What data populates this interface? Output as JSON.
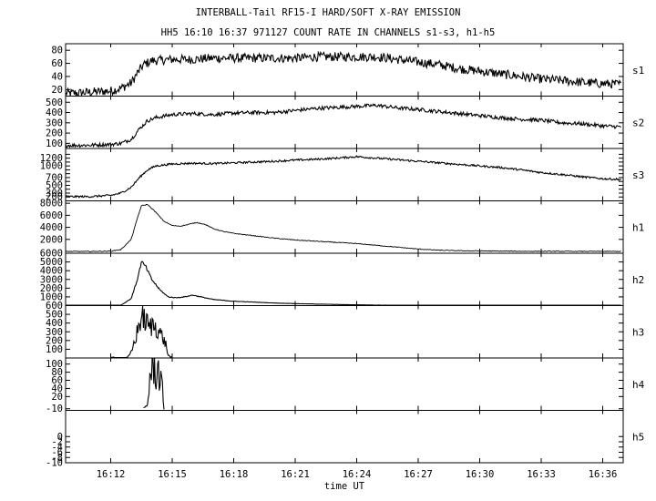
{
  "title_line1": "INTERBALL-Tail RF15-I HARD/SOFT X-RAY EMISSION",
  "title_line2": "HH5 16:10 16:37 971127  COUNT RATE IN CHANNELS s1-s3, h1-h5",
  "chart_data": {
    "type": "line",
    "xlabel": "time UT",
    "x_ticks": [
      "16:12",
      "16:15",
      "16:18",
      "16:21",
      "16:24",
      "16:27",
      "16:30",
      "16:33",
      "16:36"
    ],
    "x_tick_minutes": [
      12,
      15,
      18,
      21,
      24,
      27,
      30,
      33,
      36
    ],
    "xlim_minutes": [
      9.8,
      37.0
    ],
    "panels": [
      {
        "name": "s1",
        "ylim": [
          10,
          90
        ],
        "y_ticks": [
          20,
          40,
          60,
          80
        ],
        "series_points": [
          [
            9.8,
            14
          ],
          [
            10.5,
            15
          ],
          [
            11.0,
            16
          ],
          [
            11.5,
            17
          ],
          [
            12.0,
            18
          ],
          [
            12.5,
            22
          ],
          [
            13.0,
            30
          ],
          [
            13.3,
            45
          ],
          [
            13.6,
            58
          ],
          [
            14.0,
            64
          ],
          [
            15.0,
            66
          ],
          [
            16.0,
            66
          ],
          [
            17.0,
            68
          ],
          [
            18.0,
            68
          ],
          [
            19.0,
            68
          ],
          [
            20.0,
            68
          ],
          [
            21.0,
            68
          ],
          [
            22.0,
            70
          ],
          [
            23.0,
            70
          ],
          [
            24.0,
            70
          ],
          [
            25.0,
            70
          ],
          [
            26.0,
            66
          ],
          [
            27.0,
            62
          ],
          [
            28.0,
            58
          ],
          [
            29.0,
            52
          ],
          [
            30.0,
            48
          ],
          [
            31.0,
            44
          ],
          [
            32.0,
            40
          ],
          [
            33.0,
            36
          ],
          [
            34.0,
            34
          ],
          [
            35.0,
            31
          ],
          [
            36.0,
            29
          ],
          [
            36.9,
            28
          ]
        ],
        "noise": 7
      },
      {
        "name": "s2",
        "ylim": [
          50,
          560
        ],
        "y_ticks": [
          100,
          200,
          300,
          400,
          500
        ],
        "series_points": [
          [
            9.8,
            80
          ],
          [
            11.0,
            82
          ],
          [
            12.0,
            90
          ],
          [
            12.5,
            100
          ],
          [
            13.0,
            140
          ],
          [
            13.4,
            240
          ],
          [
            13.8,
            320
          ],
          [
            14.2,
            350
          ],
          [
            15.0,
            380
          ],
          [
            16.0,
            390
          ],
          [
            17.0,
            380
          ],
          [
            18.0,
            395
          ],
          [
            19.0,
            400
          ],
          [
            20.0,
            400
          ],
          [
            21.0,
            420
          ],
          [
            22.0,
            440
          ],
          [
            23.0,
            450
          ],
          [
            24.0,
            460
          ],
          [
            25.0,
            470
          ],
          [
            26.0,
            445
          ],
          [
            27.0,
            430
          ],
          [
            28.0,
            410
          ],
          [
            29.0,
            390
          ],
          [
            30.0,
            370
          ],
          [
            31.0,
            350
          ],
          [
            32.0,
            335
          ],
          [
            33.0,
            325
          ],
          [
            34.0,
            300
          ],
          [
            35.0,
            290
          ],
          [
            36.0,
            270
          ],
          [
            36.9,
            260
          ]
        ],
        "noise": 18
      },
      {
        "name": "s3",
        "ylim": [
          100,
          1450
        ],
        "y_ticks": [
          200,
          300,
          400,
          500,
          600,
          700,
          800,
          900,
          1000,
          1100,
          1200,
          1300
        ],
        "y_tick_labels": [
          "200",
          "300",
          "500",
          "700",
          "1000",
          "1200"
        ],
        "series_points": [
          [
            9.8,
            210
          ],
          [
            11.0,
            210
          ],
          [
            12.0,
            240
          ],
          [
            12.5,
            300
          ],
          [
            13.0,
            450
          ],
          [
            13.4,
            700
          ],
          [
            13.8,
            900
          ],
          [
            14.2,
            1000
          ],
          [
            15.0,
            1050
          ],
          [
            16.0,
            1070
          ],
          [
            17.0,
            1060
          ],
          [
            18.0,
            1080
          ],
          [
            19.0,
            1100
          ],
          [
            20.0,
            1120
          ],
          [
            21.0,
            1150
          ],
          [
            22.0,
            1170
          ],
          [
            23.0,
            1200
          ],
          [
            24.0,
            1240
          ],
          [
            25.0,
            1200
          ],
          [
            26.0,
            1160
          ],
          [
            27.0,
            1120
          ],
          [
            28.0,
            1080
          ],
          [
            29.0,
            1040
          ],
          [
            30.0,
            1000
          ],
          [
            31.0,
            960
          ],
          [
            32.0,
            900
          ],
          [
            33.0,
            830
          ],
          [
            34.0,
            780
          ],
          [
            35.0,
            720
          ],
          [
            36.0,
            670
          ],
          [
            36.9,
            650
          ]
        ],
        "noise": 25
      },
      {
        "name": "h1",
        "ylim": [
          -300,
          8400
        ],
        "y_ticks": [
          2000,
          4000,
          6000,
          8000
        ],
        "series_points": [
          [
            9.8,
            0
          ],
          [
            11.0,
            0
          ],
          [
            12.0,
            50
          ],
          [
            12.5,
            300
          ],
          [
            13.0,
            2000
          ],
          [
            13.3,
            5500
          ],
          [
            13.5,
            7600
          ],
          [
            13.8,
            7800
          ],
          [
            14.2,
            6500
          ],
          [
            14.6,
            5000
          ],
          [
            15.0,
            4300
          ],
          [
            15.4,
            4200
          ],
          [
            15.8,
            4500
          ],
          [
            16.2,
            4800
          ],
          [
            16.6,
            4500
          ],
          [
            17.0,
            3800
          ],
          [
            17.5,
            3300
          ],
          [
            18.0,
            3000
          ],
          [
            19.0,
            2600
          ],
          [
            20.0,
            2200
          ],
          [
            21.0,
            1900
          ],
          [
            22.0,
            1700
          ],
          [
            23.0,
            1500
          ],
          [
            24.0,
            1300
          ],
          [
            25.0,
            1000
          ],
          [
            26.0,
            700
          ],
          [
            27.0,
            400
          ],
          [
            28.0,
            200
          ],
          [
            29.0,
            120
          ],
          [
            30.0,
            80
          ],
          [
            31.0,
            50
          ],
          [
            32.0,
            30
          ],
          [
            34.0,
            15
          ],
          [
            36.9,
            5
          ]
        ],
        "noise": 60
      },
      {
        "name": "h2",
        "ylim": [
          0,
          6000
        ],
        "y_ticks": [
          1000,
          2000,
          3000,
          4000,
          5000,
          6000
        ],
        "series_points": [
          [
            9.8,
            0
          ],
          [
            11.5,
            0
          ],
          [
            12.5,
            50
          ],
          [
            13.0,
            800
          ],
          [
            13.3,
            3000
          ],
          [
            13.5,
            5000
          ],
          [
            13.7,
            4500
          ],
          [
            14.0,
            3000
          ],
          [
            14.4,
            1800
          ],
          [
            14.8,
            1000
          ],
          [
            15.2,
            900
          ],
          [
            15.6,
            1000
          ],
          [
            16.0,
            1200
          ],
          [
            16.4,
            1000
          ],
          [
            17.0,
            700
          ],
          [
            18.0,
            500
          ],
          [
            19.0,
            400
          ],
          [
            20.0,
            300
          ],
          [
            21.0,
            230
          ],
          [
            22.0,
            180
          ],
          [
            23.0,
            130
          ],
          [
            24.0,
            90
          ],
          [
            25.0,
            60
          ],
          [
            26.0,
            40
          ],
          [
            27.0,
            25
          ],
          [
            28.0,
            15
          ],
          [
            30.0,
            8
          ],
          [
            36.9,
            2
          ]
        ],
        "noise": 90
      },
      {
        "name": "h3",
        "ylim": [
          0,
          600
        ],
        "y_ticks": [
          100,
          200,
          300,
          400,
          500,
          600
        ],
        "series_points": [
          [
            12.0,
            0
          ],
          [
            12.8,
            0
          ],
          [
            13.0,
            60
          ],
          [
            13.3,
            300
          ],
          [
            13.5,
            480
          ],
          [
            13.7,
            420
          ],
          [
            13.9,
            350
          ],
          [
            14.1,
            380
          ],
          [
            14.3,
            330
          ],
          [
            14.5,
            250
          ],
          [
            14.7,
            150
          ],
          [
            14.8,
            30
          ],
          [
            15.0,
            0
          ]
        ],
        "noise": 70
      },
      {
        "name": "h4",
        "ylim": [
          -14,
          115
        ],
        "y_ticks": [
          -10,
          20,
          40,
          60,
          80,
          100
        ],
        "series_points": [
          [
            13.6,
            -10
          ],
          [
            13.8,
            0
          ],
          [
            13.9,
            60
          ],
          [
            14.0,
            90
          ],
          [
            14.1,
            100
          ],
          [
            14.2,
            70
          ],
          [
            14.3,
            90
          ],
          [
            14.4,
            60
          ],
          [
            14.5,
            50
          ],
          [
            14.6,
            -10
          ]
        ],
        "noise": 25
      },
      {
        "name": "h5",
        "ylim": [
          -10,
          10
        ],
        "y_ticks": [
          -10,
          -8,
          -6,
          -4,
          -2,
          0
        ],
        "series_points": [],
        "noise": 0
      }
    ]
  }
}
